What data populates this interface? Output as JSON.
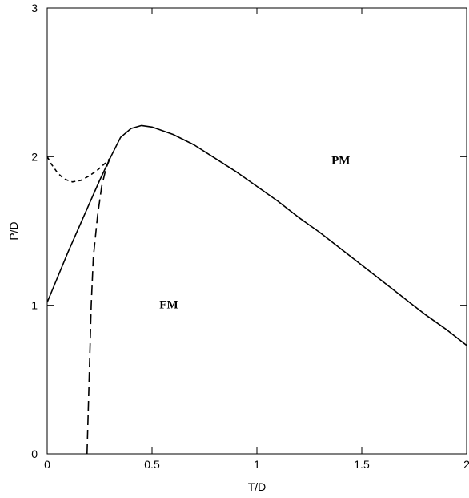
{
  "chart_data": {
    "type": "line",
    "title": "",
    "xlabel": "T/D",
    "ylabel": "P/D",
    "xlim": [
      0,
      2
    ],
    "ylim": [
      0,
      3
    ],
    "xticks": [
      "0",
      "0.5",
      "1",
      "1.5",
      "2"
    ],
    "yticks": [
      "0",
      "1",
      "2",
      "3"
    ],
    "grid": false,
    "legend": "none",
    "annotations": [
      {
        "text": "PM",
        "x": 1.4,
        "y": 1.95
      },
      {
        "text": "FM",
        "x": 0.58,
        "y": 0.98
      }
    ],
    "series": [
      {
        "style": "solid",
        "color": "#000000",
        "x": [
          0,
          0.05,
          0.1,
          0.15,
          0.2,
          0.25,
          0.3,
          0.35,
          0.4,
          0.45,
          0.5,
          0.6,
          0.7,
          0.8,
          0.9,
          1.0,
          1.1,
          1.2,
          1.3,
          1.4,
          1.5,
          1.6,
          1.7,
          1.8,
          1.9,
          2.0
        ],
        "y": [
          1.02,
          1.19,
          1.36,
          1.52,
          1.68,
          1.84,
          1.99,
          2.13,
          2.19,
          2.21,
          2.2,
          2.15,
          2.08,
          1.99,
          1.9,
          1.8,
          1.7,
          1.59,
          1.49,
          1.38,
          1.27,
          1.16,
          1.05,
          0.94,
          0.84,
          0.73
        ]
      },
      {
        "style": "long-dash",
        "color": "#000000",
        "x": [
          0.19,
          0.2,
          0.21,
          0.22,
          0.24,
          0.26,
          0.28,
          0.3
        ],
        "y": [
          0.0,
          0.5,
          1.0,
          1.32,
          1.6,
          1.8,
          1.92,
          1.99
        ]
      },
      {
        "style": "short-dash",
        "color": "#000000",
        "x": [
          0,
          0.02,
          0.05,
          0.08,
          0.12,
          0.16,
          0.2,
          0.24,
          0.28,
          0.3
        ],
        "y": [
          2.0,
          1.95,
          1.89,
          1.85,
          1.83,
          1.84,
          1.87,
          1.91,
          1.96,
          1.99
        ]
      }
    ]
  }
}
